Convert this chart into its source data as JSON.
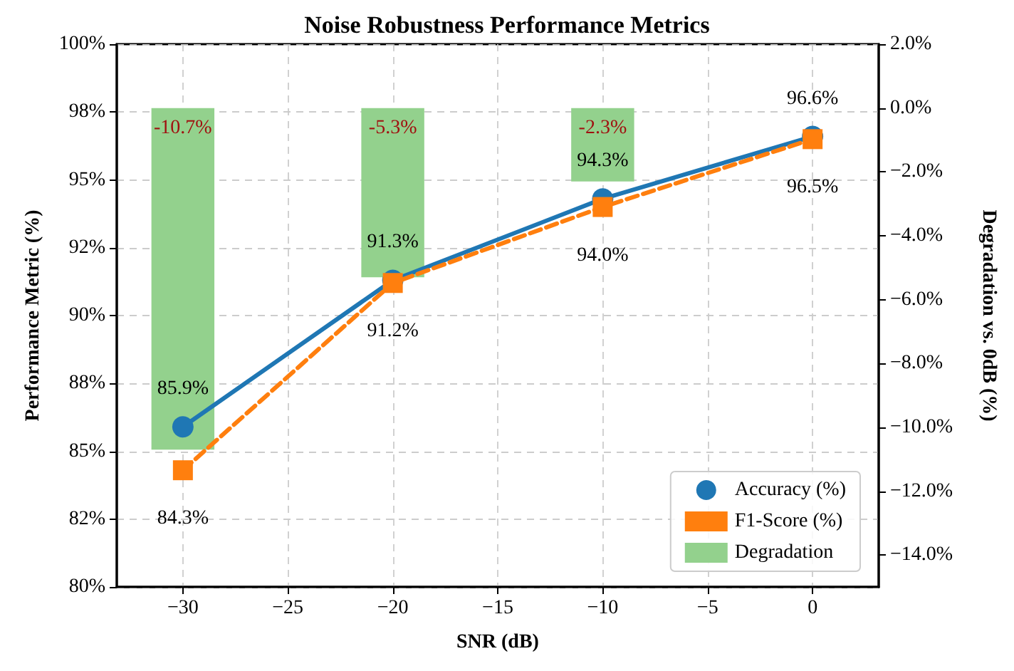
{
  "chart_data": {
    "type": "line",
    "title": "Noise Robustness Performance Metrics",
    "xlabel": "SNR (dB)",
    "ylabel": "Performance Metric (%)",
    "y2label": "Degradation vs. 0dB (%)",
    "x": [
      -30,
      -20,
      -10,
      0
    ],
    "series": [
      {
        "name": "Accuracy (%)",
        "color": "#1f77b4",
        "marker": "circle",
        "line_style": "solid",
        "values": [
          85.9,
          91.3,
          94.3,
          96.6
        ],
        "value_labels": [
          "85.9%",
          "91.3%",
          "94.3%",
          "96.6%"
        ]
      },
      {
        "name": "F1-Score (%)",
        "color": "#ff7f0e",
        "marker": "square",
        "line_style": "dashed",
        "values": [
          84.3,
          91.2,
          94.0,
          96.5
        ],
        "value_labels": [
          "84.3%",
          "91.2%",
          "94.0%",
          "96.5%"
        ]
      },
      {
        "name": "Degradation",
        "type": "bar",
        "axis": "y2",
        "color": "#93d18d",
        "values": [
          -10.7,
          -5.3,
          -2.3,
          null
        ],
        "value_labels": [
          "-10.7%",
          "-5.3%",
          "-2.3%",
          null
        ]
      }
    ],
    "xlim": [
      -33.15,
      3.15
    ],
    "xticks": [
      {
        "value": -30,
        "label": "−30"
      },
      {
        "value": -25,
        "label": "−25"
      },
      {
        "value": -20,
        "label": "−20"
      },
      {
        "value": -15,
        "label": "−15"
      },
      {
        "value": -10,
        "label": "−10"
      },
      {
        "value": -5,
        "label": "−5"
      },
      {
        "value": 0,
        "label": "0"
      }
    ],
    "ylim": [
      80,
      100
    ],
    "yticks": [
      {
        "value": 80,
        "label": "80%"
      },
      {
        "value": 82.5,
        "label": "82%"
      },
      {
        "value": 85,
        "label": "85%"
      },
      {
        "value": 87.5,
        "label": "88%"
      },
      {
        "value": 90,
        "label": "90%"
      },
      {
        "value": 92.5,
        "label": "92%"
      },
      {
        "value": 95,
        "label": "95%"
      },
      {
        "value": 97.5,
        "label": "98%"
      },
      {
        "value": 100,
        "label": "100%"
      }
    ],
    "y2lim": [
      -15,
      2
    ],
    "y2ticks": [
      {
        "value": 2,
        "label": "2.0%"
      },
      {
        "value": 0,
        "label": "0.0%"
      },
      {
        "value": -2,
        "label": "−2.0%"
      },
      {
        "value": -4,
        "label": "−4.0%"
      },
      {
        "value": -6,
        "label": "−6.0%"
      },
      {
        "value": -8,
        "label": "−8.0%"
      },
      {
        "value": -10,
        "label": "−10.0%"
      },
      {
        "value": -12,
        "label": "−12.0%"
      },
      {
        "value": -14,
        "label": "−14.0%"
      }
    ],
    "grid": true,
    "legend": "bottom right"
  }
}
